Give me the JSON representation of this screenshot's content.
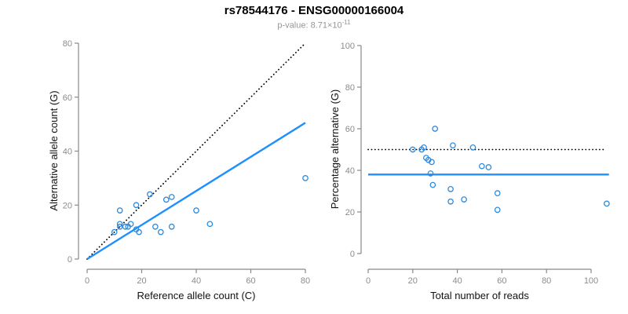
{
  "header": {
    "title": "rs78544176 - ENSG00000166004",
    "subtitle_prefix": "p-value: 8.71×10",
    "subtitle_exponent": "-11"
  },
  "colors": {
    "line_blue": "#1E8FFF",
    "point_blue": "#2E8BDF",
    "dotted_black": "#000000",
    "axis_gray": "#898989",
    "tick_label_gray": "#8c8c8c",
    "subtitle_gray": "#969696",
    "title_black": "#000000"
  },
  "chart_data": {
    "title": "rs78544176 - ENSG00000166004",
    "subtitle": "p-value: 8.71×10^-11",
    "panels": [
      {
        "type": "scatter",
        "xlabel": "Reference allele count (C)",
        "ylabel": "Alternative allele count (G)",
        "xlim": [
          0,
          80
        ],
        "ylim": [
          0,
          80
        ],
        "xticks": [
          0,
          20,
          40,
          60,
          80
        ],
        "yticks": [
          0,
          20,
          40,
          60,
          80
        ],
        "grid": false,
        "legend": "none",
        "points": [
          [
            10,
            10
          ],
          [
            12,
            12
          ],
          [
            12,
            13
          ],
          [
            12,
            18
          ],
          [
            14,
            12
          ],
          [
            15,
            12
          ],
          [
            16,
            13
          ],
          [
            18,
            11
          ],
          [
            18,
            20
          ],
          [
            19,
            10
          ],
          [
            23,
            24
          ],
          [
            25,
            12
          ],
          [
            27,
            10
          ],
          [
            29,
            22
          ],
          [
            31,
            12
          ],
          [
            31,
            23
          ],
          [
            40,
            18
          ],
          [
            45,
            13
          ],
          [
            80,
            30
          ]
        ],
        "lines": [
          {
            "name": "identity-line",
            "style": "dotted",
            "color": "#000000",
            "from": [
              0,
              0
            ],
            "to": [
              80,
              80
            ]
          },
          {
            "name": "regression-line",
            "style": "solid",
            "color": "#1E8FFF",
            "from": [
              0,
              0
            ],
            "to": [
              80,
              50.5
            ]
          }
        ]
      },
      {
        "type": "scatter",
        "xlabel": "Total number of reads",
        "ylabel": "Percentage alternative (G)",
        "xlim": [
          0,
          100
        ],
        "ylim": [
          0,
          100
        ],
        "xticks": [
          0,
          20,
          40,
          60,
          80,
          100
        ],
        "yticks": [
          0,
          20,
          40,
          60,
          80,
          100
        ],
        "grid": false,
        "legend": "none",
        "points": [
          [
            20,
            50
          ],
          [
            24,
            50
          ],
          [
            25,
            51
          ],
          [
            26,
            46
          ],
          [
            27,
            45
          ],
          [
            28.5,
            44
          ],
          [
            28,
            38.5
          ],
          [
            29,
            33
          ],
          [
            30,
            60
          ],
          [
            37,
            31
          ],
          [
            37,
            25
          ],
          [
            38,
            52
          ],
          [
            43,
            26
          ],
          [
            47,
            51
          ],
          [
            51,
            42
          ],
          [
            54,
            41.5
          ],
          [
            58,
            29
          ],
          [
            58,
            21
          ],
          [
            107,
            24
          ]
        ],
        "lines": [
          {
            "name": "expected-50pct-line",
            "style": "dotted",
            "color": "#000000",
            "from": [
              0,
              50
            ],
            "to": [
              106,
              50
            ]
          },
          {
            "name": "mean-percentage-line",
            "style": "solid",
            "color": "#1E8FFF",
            "from": [
              0,
              38
            ],
            "to": [
              108,
              38
            ]
          }
        ]
      }
    ]
  }
}
